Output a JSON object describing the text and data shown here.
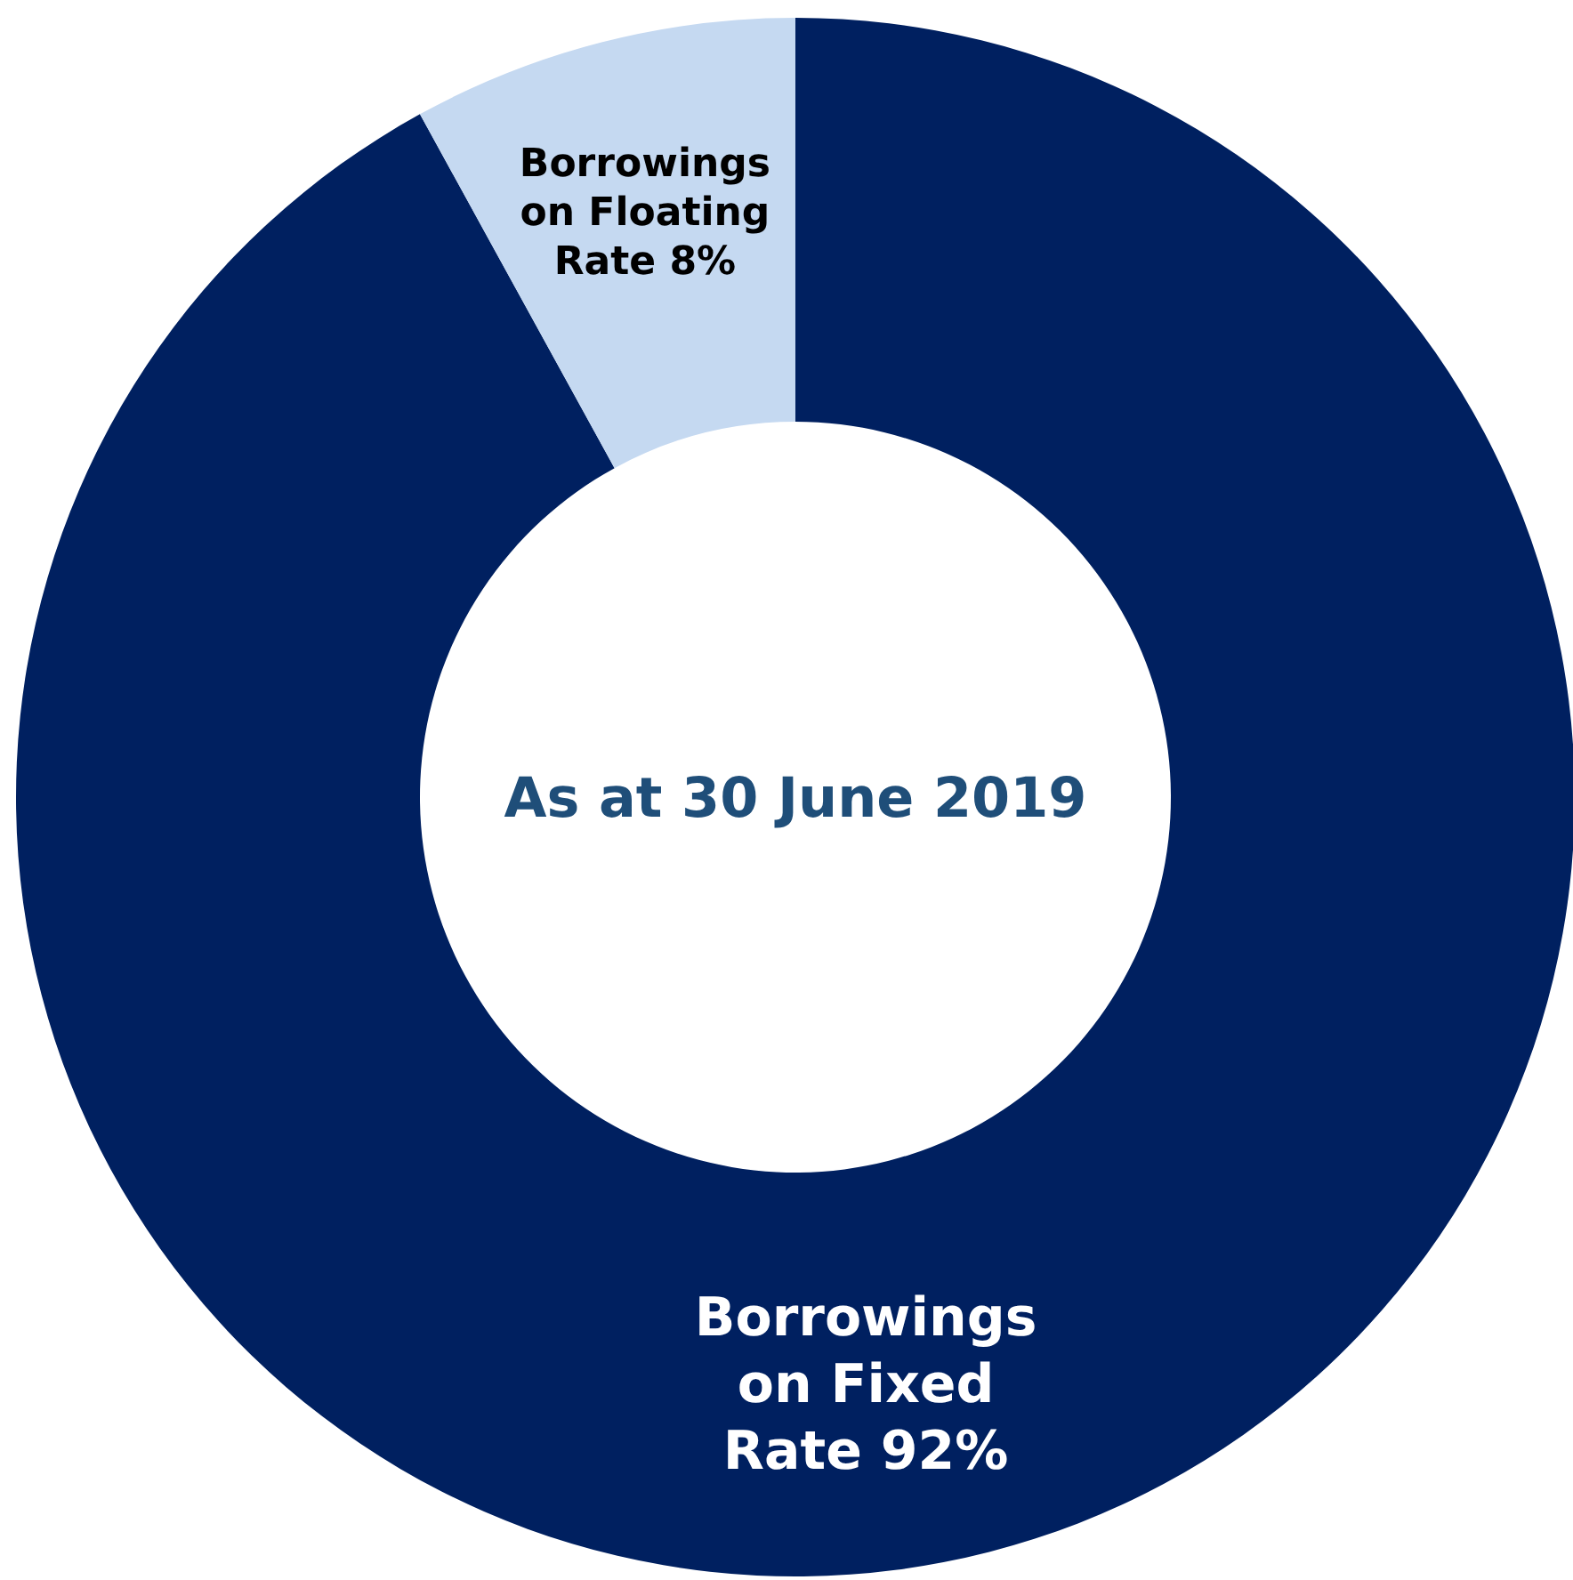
{
  "chart_data": {
    "type": "donut",
    "title": "As at 30 June 2019",
    "categories": [
      "Borrowings on Fixed Rate",
      "Borrowings on Floating Rate"
    ],
    "values": [
      92,
      8
    ],
    "colors": [
      "#002060",
      "#c5d9f1"
    ],
    "value_labels": [
      "92%",
      "8%"
    ],
    "legend": false
  }
}
